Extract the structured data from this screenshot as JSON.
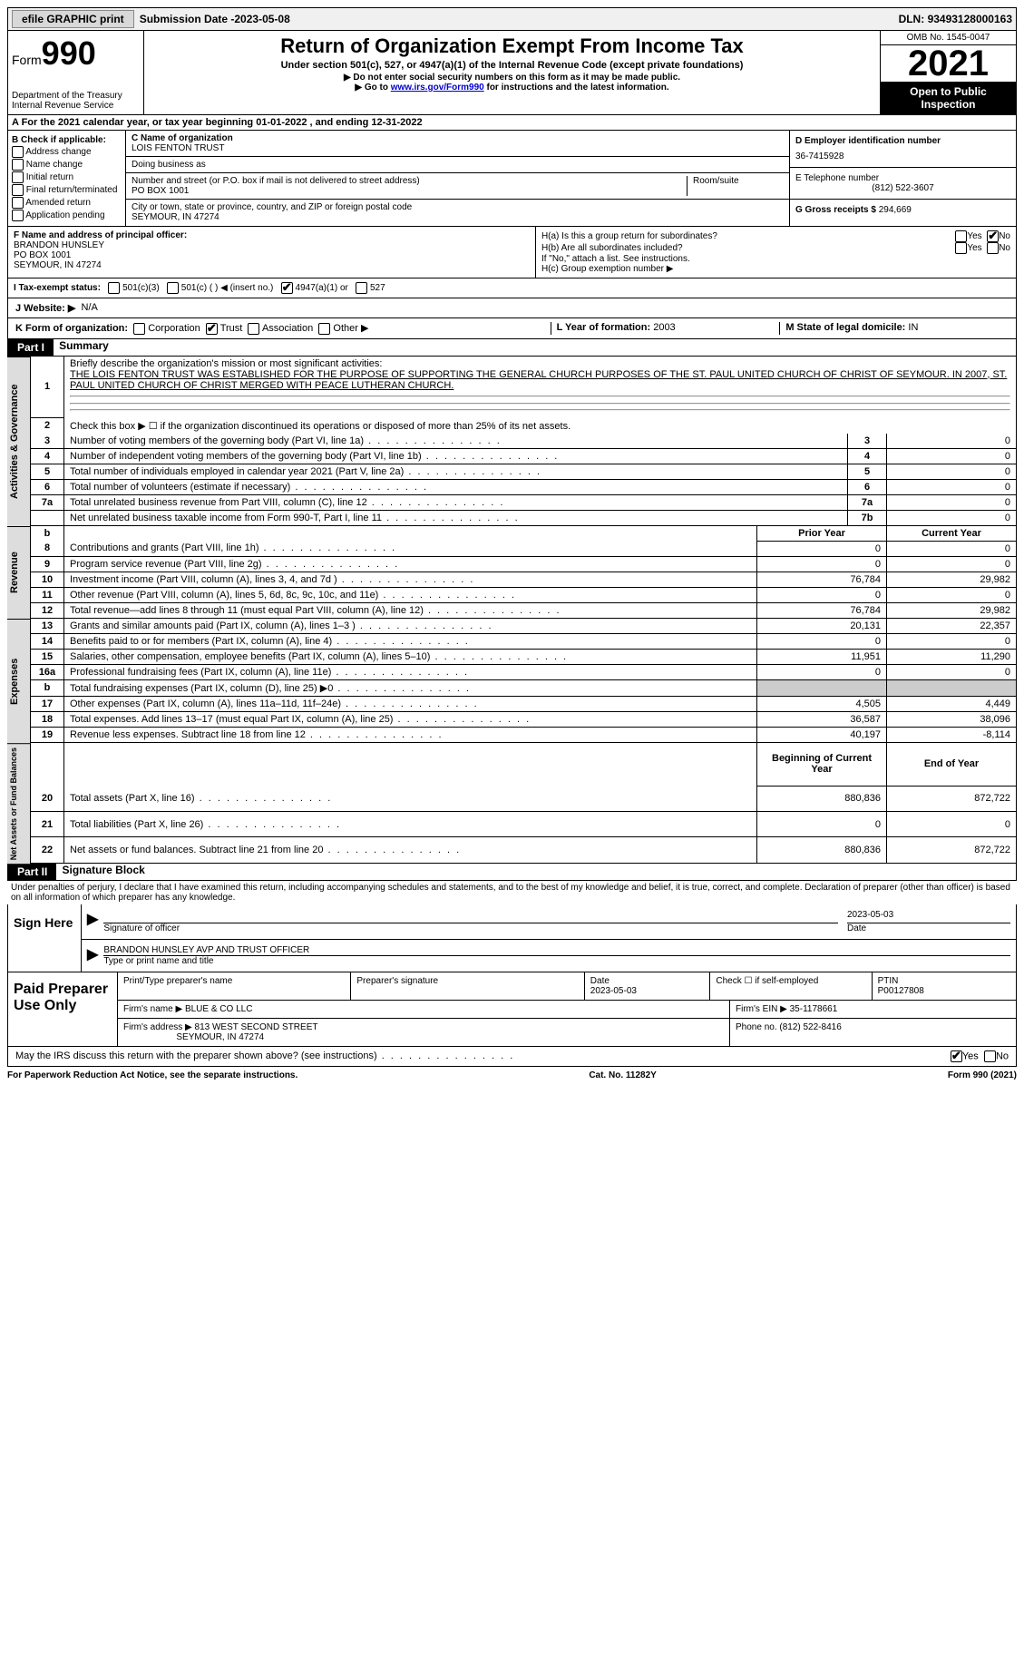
{
  "topbar": {
    "efile": "efile GRAPHIC print",
    "sub_label": "Submission Date - ",
    "sub_date": "2023-05-08",
    "dln_label": "DLN: ",
    "dln": "93493128000163"
  },
  "header": {
    "form_word": "Form",
    "form_num": "990",
    "dept": "Department of the Treasury",
    "irs": "Internal Revenue Service",
    "title": "Return of Organization Exempt From Income Tax",
    "sub1": "Under section 501(c), 527, or 4947(a)(1) of the Internal Revenue Code (except private foundations)",
    "sub2": "▶ Do not enter social security numbers on this form as it may be made public.",
    "sub3_pre": "▶ Go to ",
    "sub3_link": "www.irs.gov/Form990",
    "sub3_post": " for instructions and the latest information.",
    "omb": "OMB No. 1545-0047",
    "year": "2021",
    "open": "Open to Public Inspection"
  },
  "period": {
    "text_a": "A For the 2021 calendar year, or tax year beginning ",
    "begin": "01-01-2022",
    "text_b": " , and ending ",
    "end": "12-31-2022"
  },
  "box_b": {
    "title": "B Check if applicable:",
    "items": [
      "Address change",
      "Name change",
      "Initial return",
      "Final return/terminated",
      "Amended return",
      "Application pending"
    ]
  },
  "box_c": {
    "name_label": "C Name of organization",
    "name": "LOIS FENTON TRUST",
    "dba_label": "Doing business as",
    "street_label": "Number and street (or P.O. box if mail is not delivered to street address)",
    "room_label": "Room/suite",
    "street": "PO BOX 1001",
    "city_label": "City or town, state or province, country, and ZIP or foreign postal code",
    "city": "SEYMOUR, IN  47274"
  },
  "box_d": {
    "ein_label": "D Employer identification number",
    "ein": "36-7415928",
    "tel_label": "E Telephone number",
    "tel": "(812) 522-3607",
    "gross_label": "G Gross receipts $ ",
    "gross": "294,669"
  },
  "box_f": {
    "label": "F Name and address of principal officer:",
    "name": "BRANDON HUNSLEY",
    "line2": "PO BOX 1001",
    "line3": "SEYMOUR, IN  47274"
  },
  "box_h": {
    "a": "H(a)  Is this a group return for subordinates?",
    "b": "H(b)  Are all subordinates included?",
    "note": "If \"No,\" attach a list. See instructions.",
    "c": "H(c)  Group exemption number ▶"
  },
  "tax_exempt": {
    "label": "I  Tax-exempt status:",
    "o1": "501(c)(3)",
    "o2": "501(c) (  ) ◀ (insert no.)",
    "o3": "4947(a)(1) or",
    "o4": "527"
  },
  "website": {
    "label": "J  Website: ▶",
    "value": "N/A"
  },
  "box_k": {
    "label": "K Form of organization:",
    "corp": "Corporation",
    "trust": "Trust",
    "assoc": "Association",
    "other": "Other ▶"
  },
  "box_l": {
    "label": "L Year of formation: ",
    "value": "2003"
  },
  "box_m": {
    "label": "M State of legal domicile: ",
    "value": "IN"
  },
  "part1": {
    "hdr": "Part I",
    "title": "Summary"
  },
  "mission": {
    "q": "Briefly describe the organization's mission or most significant activities:",
    "text": "THE LOIS FENTON TRUST WAS ESTABLISHED FOR THE PURPOSE OF SUPPORTING THE GENERAL CHURCH PURPOSES OF THE ST. PAUL UNITED CHURCH OF CHRIST OF SEYMOUR. IN 2007, ST. PAUL UNITED CHURCH OF CHRIST MERGED WITH PEACE LUTHERAN CHURCH."
  },
  "line2": "Check this box ▶ ☐ if the organization discontinued its operations or disposed of more than 25% of its net assets.",
  "gov_rows": [
    {
      "n": "3",
      "t": "Number of voting members of the governing body (Part VI, line 1a)",
      "b": "3",
      "v": "0"
    },
    {
      "n": "4",
      "t": "Number of independent voting members of the governing body (Part VI, line 1b)",
      "b": "4",
      "v": "0"
    },
    {
      "n": "5",
      "t": "Total number of individuals employed in calendar year 2021 (Part V, line 2a)",
      "b": "5",
      "v": "0"
    },
    {
      "n": "6",
      "t": "Total number of volunteers (estimate if necessary)",
      "b": "6",
      "v": "0"
    },
    {
      "n": "7a",
      "t": "Total unrelated business revenue from Part VIII, column (C), line 12",
      "b": "7a",
      "v": "0"
    },
    {
      "n": "",
      "t": "Net unrelated business taxable income from Form 990-T, Part I, line 11",
      "b": "7b",
      "v": "0"
    }
  ],
  "rev_hdr": {
    "b": "b",
    "py": "Prior Year",
    "cy": "Current Year"
  },
  "rev_rows": [
    {
      "n": "8",
      "t": "Contributions and grants (Part VIII, line 1h)",
      "p": "0",
      "c": "0"
    },
    {
      "n": "9",
      "t": "Program service revenue (Part VIII, line 2g)",
      "p": "0",
      "c": "0"
    },
    {
      "n": "10",
      "t": "Investment income (Part VIII, column (A), lines 3, 4, and 7d )",
      "p": "76,784",
      "c": "29,982"
    },
    {
      "n": "11",
      "t": "Other revenue (Part VIII, column (A), lines 5, 6d, 8c, 9c, 10c, and 11e)",
      "p": "0",
      "c": "0"
    },
    {
      "n": "12",
      "t": "Total revenue—add lines 8 through 11 (must equal Part VIII, column (A), line 12)",
      "p": "76,784",
      "c": "29,982"
    }
  ],
  "exp_rows": [
    {
      "n": "13",
      "t": "Grants and similar amounts paid (Part IX, column (A), lines 1–3 )",
      "p": "20,131",
      "c": "22,357"
    },
    {
      "n": "14",
      "t": "Benefits paid to or for members (Part IX, column (A), line 4)",
      "p": "0",
      "c": "0"
    },
    {
      "n": "15",
      "t": "Salaries, other compensation, employee benefits (Part IX, column (A), lines 5–10)",
      "p": "11,951",
      "c": "11,290"
    },
    {
      "n": "16a",
      "t": "Professional fundraising fees (Part IX, column (A), line 11e)",
      "p": "0",
      "c": "0"
    },
    {
      "n": "b",
      "t": "Total fundraising expenses (Part IX, column (D), line 25) ▶0",
      "p": "",
      "c": "",
      "shade": true
    },
    {
      "n": "17",
      "t": "Other expenses (Part IX, column (A), lines 11a–11d, 11f–24e)",
      "p": "4,505",
      "c": "4,449"
    },
    {
      "n": "18",
      "t": "Total expenses. Add lines 13–17 (must equal Part IX, column (A), line 25)",
      "p": "36,587",
      "c": "38,096"
    },
    {
      "n": "19",
      "t": "Revenue less expenses. Subtract line 18 from line 12",
      "p": "40,197",
      "c": "-8,114"
    }
  ],
  "na_hdr": {
    "py": "Beginning of Current Year",
    "cy": "End of Year"
  },
  "na_rows": [
    {
      "n": "20",
      "t": "Total assets (Part X, line 16)",
      "p": "880,836",
      "c": "872,722"
    },
    {
      "n": "21",
      "t": "Total liabilities (Part X, line 26)",
      "p": "0",
      "c": "0"
    },
    {
      "n": "22",
      "t": "Net assets or fund balances. Subtract line 21 from line 20",
      "p": "880,836",
      "c": "872,722"
    }
  ],
  "tabs": {
    "ag": "Activities & Governance",
    "rev": "Revenue",
    "exp": "Expenses",
    "na": "Net Assets or Fund Balances"
  },
  "part2": {
    "hdr": "Part II",
    "title": "Signature Block"
  },
  "penalty": "Under penalties of perjury, I declare that I have examined this return, including accompanying schedules and statements, and to the best of my knowledge and belief, it is true, correct, and complete. Declaration of preparer (other than officer) is based on all information of which preparer has any knowledge.",
  "sign": {
    "here": "Sign Here",
    "date": "2023-05-03",
    "sig_label": "Signature of officer",
    "date_label": "Date",
    "name": "BRANDON HUNSLEY  AVP AND TRUST OFFICER",
    "name_label": "Type or print name and title"
  },
  "prep": {
    "label": "Paid Preparer Use Only",
    "r1": {
      "a": "Print/Type preparer's name",
      "b": "Preparer's signature",
      "c_label": "Date",
      "c": "2023-05-03",
      "d": "Check ☐ if self-employed",
      "e_label": "PTIN",
      "e": "P00127808"
    },
    "r2": {
      "a": "Firm's name   ▶ ",
      "av": "BLUE & CO LLC",
      "b": "Firm's EIN ▶ ",
      "bv": "35-1178661"
    },
    "r3": {
      "a": "Firm's address ▶ ",
      "av1": "813 WEST SECOND STREET",
      "av2": "SEYMOUR, IN  47274",
      "b": "Phone no. ",
      "bv": "(812) 522-8416"
    }
  },
  "discuss": "May the IRS discuss this return with the preparer shown above? (see instructions)",
  "footer": {
    "a": "For Paperwork Reduction Act Notice, see the separate instructions.",
    "b": "Cat. No. 11282Y",
    "c": "Form 990 (2021)"
  },
  "yn": {
    "yes": "Yes",
    "no": "No"
  }
}
